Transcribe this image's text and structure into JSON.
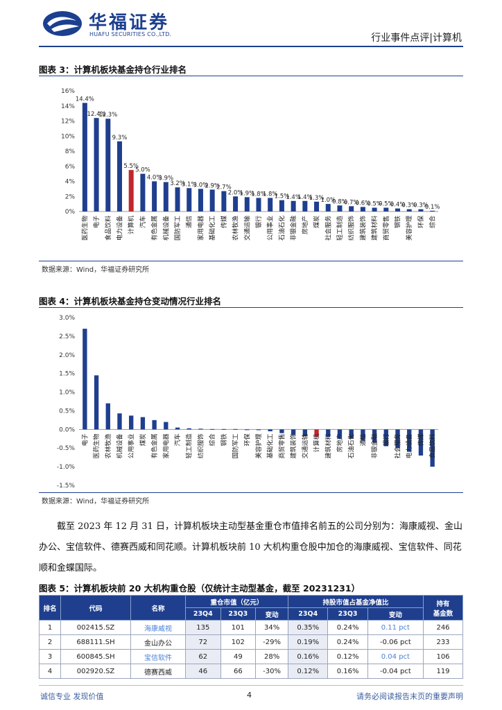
{
  "header": {
    "brand_cn": "华福证券",
    "brand_en": "HUAFU SECURITIES CO.,LTD.",
    "report_type": "行业事件点评|计算机"
  },
  "fig3": {
    "title": "图表 3：计算机板块基金持仓行业排名",
    "source": "数据来源：Wind，华福证券研究所"
  },
  "fig4": {
    "title": "图表 4：计算机板块基金持仓变动情况行业排名",
    "source": "数据来源：Wind，华福证券研究所"
  },
  "paragraph": "截至 2023 年 12 月 31 日，计算机板块主动型基金重仓市值排名前五的公司分别为：海康威视、金山办公、宝信软件、德赛西威和同花顺。计算机板块前 10 大机构重仓股中加仓的海康威视、宝信软件、同花顺和金蝶国际。",
  "fig5": {
    "title": "图表 5：计算机板块前 20 大机构重仓股（仅统计主动型基金，截至 20231231）",
    "headers": {
      "rank": "排名",
      "code": "代码",
      "name": "名称",
      "mv_group": "重仓市值（亿元）",
      "ratio_group": "持股市值占基金净值比",
      "funds_l1": "持有",
      "funds_l2": "基金数",
      "q4": "23Q4",
      "q3": "23Q3",
      "chg": "变动"
    },
    "rows": [
      {
        "rank": "1",
        "code": "002415.SZ",
        "name": "海康威视",
        "mv_q4": "135",
        "mv_q3": "101",
        "mv_chg": "34%",
        "r_q4": "0.35%",
        "r_q3": "0.24%",
        "r_chg": "0.11 pct",
        "funds": "246"
      },
      {
        "rank": "2",
        "code": "688111.SH",
        "name": "金山办公",
        "mv_q4": "72",
        "mv_q3": "102",
        "mv_chg": "-29%",
        "r_q4": "0.19%",
        "r_q3": "0.24%",
        "r_chg": "-0.06 pct",
        "funds": "233"
      },
      {
        "rank": "3",
        "code": "600845.SH",
        "name": "宝信软件",
        "mv_q4": "62",
        "mv_q3": "49",
        "mv_chg": "28%",
        "r_q4": "0.16%",
        "r_q3": "0.12%",
        "r_chg": "0.04 pct",
        "funds": "106"
      },
      {
        "rank": "4",
        "code": "002920.SZ",
        "name": "德赛西威",
        "mv_q4": "46",
        "mv_q3": "66",
        "mv_chg": "-30%",
        "r_q4": "0.12%",
        "r_q3": "0.16%",
        "r_chg": "-0.04 pct",
        "funds": "119"
      }
    ]
  },
  "footer": {
    "left": "诚信专业  发现价值",
    "page": "4",
    "right": "请务必阅读报告末页的重要声明"
  },
  "chart_data": [
    {
      "type": "bar",
      "categories": [
        "医药生物",
        "电子",
        "食品饮料",
        "电力设备",
        "计算机",
        "汽车",
        "有色金属",
        "机械设备",
        "国防军工",
        "通信",
        "家用电器",
        "基础化工",
        "传媒",
        "农林牧渔",
        "交通运输",
        "银行",
        "公用事业",
        "石油石化",
        "非银金融",
        "房地产",
        "煤炭",
        "社会服务",
        "轻工制造",
        "纺织服饰",
        "建筑装饰",
        "建筑材料",
        "商贸零售",
        "钢铁",
        "美容护理",
        "环保",
        "综合"
      ],
      "values": [
        14.4,
        12.4,
        12.3,
        9.3,
        5.5,
        5.0,
        4.0,
        3.9,
        3.2,
        3.1,
        3.0,
        2.9,
        2.7,
        2.0,
        1.9,
        1.8,
        1.8,
        1.5,
        1.4,
        1.4,
        1.3,
        1.0,
        0.8,
        0.7,
        0.6,
        0.5,
        0.5,
        0.4,
        0.3,
        0.3,
        0.1
      ],
      "data_labels": [
        "14.4%",
        "12.4%",
        "12.3%",
        "9.3%",
        "5.5%",
        "5.0%",
        "4.0%",
        "3.9%",
        "3.2%",
        "3.1%",
        "3.0%",
        "2.9%",
        "2.7%",
        "2.0%",
        "1.9%",
        "1.8%",
        "1.8%",
        "1.5%",
        "1.4%",
        "1.4%",
        "1.3%",
        "1.0%",
        "0.8%",
        "0.7%",
        "0.6%",
        "0.5%",
        "0.5%",
        "0.4%",
        "0.3%",
        "0.3%",
        "0.1%"
      ],
      "highlight": "计算机",
      "ylim": [
        0,
        16
      ],
      "yticks": [
        "0%",
        "2%",
        "4%",
        "6%",
        "8%",
        "10%",
        "12%",
        "14%",
        "16%"
      ],
      "colors": {
        "bar": "#1f3f8e",
        "highlight": "#c0282d"
      }
    },
    {
      "type": "bar",
      "categories": [
        "电子",
        "医药生物",
        "农林牧渔",
        "机械设备",
        "公用事业",
        "煤炭",
        "有色金属",
        "家用电器",
        "汽车",
        "轻工制造",
        "纺织服饰",
        "综合",
        "钢铁",
        "国防军工",
        "环保",
        "美容护理",
        "基础化工",
        "商贸零售",
        "建筑装饰",
        "交通运输",
        "计算机",
        "建筑材料",
        "房地产",
        "石油石化",
        "通信",
        "非银金融",
        "银行",
        "社会服务",
        "电力设备",
        "传媒",
        "食品饮料"
      ],
      "values": [
        2.7,
        1.45,
        0.7,
        0.43,
        0.37,
        0.33,
        0.25,
        0.2,
        0.05,
        0.03,
        0.02,
        0.01,
        0.01,
        0.01,
        -0.01,
        -0.02,
        -0.05,
        -0.1,
        -0.15,
        -0.18,
        -0.2,
        -0.2,
        -0.25,
        -0.25,
        -0.3,
        -0.35,
        -0.45,
        -0.5,
        -0.6,
        -0.7,
        -1.0
      ],
      "highlight": "计算机",
      "ylim": [
        -1.5,
        3.0
      ],
      "yticks": [
        "-1.5%",
        "-1.0%",
        "-0.5%",
        "0.0%",
        "0.5%",
        "1.0%",
        "1.5%",
        "2.0%",
        "2.5%",
        "3.0%"
      ],
      "colors": {
        "bar": "#1f3f8e",
        "highlight": "#c0282d"
      }
    }
  ]
}
